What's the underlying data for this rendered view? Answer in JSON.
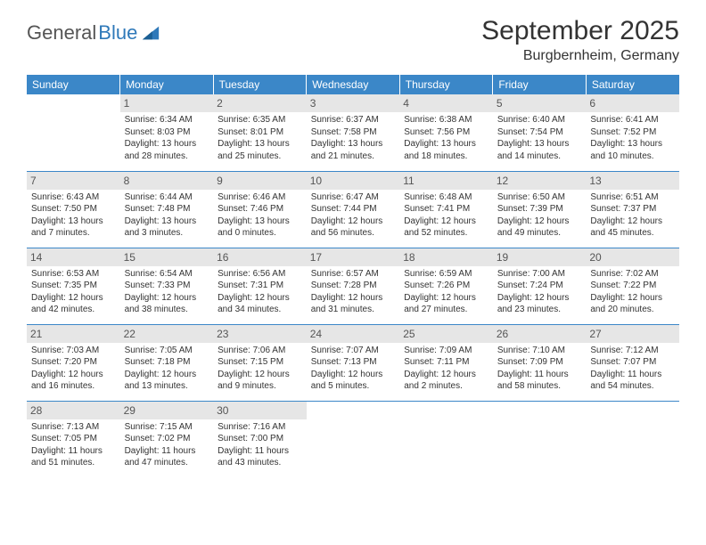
{
  "logo": {
    "text1": "General",
    "text2": "Blue"
  },
  "title": "September 2025",
  "subtitle": "Burgbernheim, Germany",
  "colors": {
    "header_bg": "#3b87c8",
    "header_text": "#ffffff",
    "daynum_bg": "#e6e6e6",
    "rule": "#3b87c8",
    "logo_blue": "#2f79b9",
    "body_text": "#333333"
  },
  "weekdays": [
    "Sunday",
    "Monday",
    "Tuesday",
    "Wednesday",
    "Thursday",
    "Friday",
    "Saturday"
  ],
  "weeks": [
    [
      {
        "day": "",
        "sunrise": "",
        "sunset": "",
        "daylight1": "",
        "daylight2": ""
      },
      {
        "day": "1",
        "sunrise": "Sunrise: 6:34 AM",
        "sunset": "Sunset: 8:03 PM",
        "daylight1": "Daylight: 13 hours",
        "daylight2": "and 28 minutes."
      },
      {
        "day": "2",
        "sunrise": "Sunrise: 6:35 AM",
        "sunset": "Sunset: 8:01 PM",
        "daylight1": "Daylight: 13 hours",
        "daylight2": "and 25 minutes."
      },
      {
        "day": "3",
        "sunrise": "Sunrise: 6:37 AM",
        "sunset": "Sunset: 7:58 PM",
        "daylight1": "Daylight: 13 hours",
        "daylight2": "and 21 minutes."
      },
      {
        "day": "4",
        "sunrise": "Sunrise: 6:38 AM",
        "sunset": "Sunset: 7:56 PM",
        "daylight1": "Daylight: 13 hours",
        "daylight2": "and 18 minutes."
      },
      {
        "day": "5",
        "sunrise": "Sunrise: 6:40 AM",
        "sunset": "Sunset: 7:54 PM",
        "daylight1": "Daylight: 13 hours",
        "daylight2": "and 14 minutes."
      },
      {
        "day": "6",
        "sunrise": "Sunrise: 6:41 AM",
        "sunset": "Sunset: 7:52 PM",
        "daylight1": "Daylight: 13 hours",
        "daylight2": "and 10 minutes."
      }
    ],
    [
      {
        "day": "7",
        "sunrise": "Sunrise: 6:43 AM",
        "sunset": "Sunset: 7:50 PM",
        "daylight1": "Daylight: 13 hours",
        "daylight2": "and 7 minutes."
      },
      {
        "day": "8",
        "sunrise": "Sunrise: 6:44 AM",
        "sunset": "Sunset: 7:48 PM",
        "daylight1": "Daylight: 13 hours",
        "daylight2": "and 3 minutes."
      },
      {
        "day": "9",
        "sunrise": "Sunrise: 6:46 AM",
        "sunset": "Sunset: 7:46 PM",
        "daylight1": "Daylight: 13 hours",
        "daylight2": "and 0 minutes."
      },
      {
        "day": "10",
        "sunrise": "Sunrise: 6:47 AM",
        "sunset": "Sunset: 7:44 PM",
        "daylight1": "Daylight: 12 hours",
        "daylight2": "and 56 minutes."
      },
      {
        "day": "11",
        "sunrise": "Sunrise: 6:48 AM",
        "sunset": "Sunset: 7:41 PM",
        "daylight1": "Daylight: 12 hours",
        "daylight2": "and 52 minutes."
      },
      {
        "day": "12",
        "sunrise": "Sunrise: 6:50 AM",
        "sunset": "Sunset: 7:39 PM",
        "daylight1": "Daylight: 12 hours",
        "daylight2": "and 49 minutes."
      },
      {
        "day": "13",
        "sunrise": "Sunrise: 6:51 AM",
        "sunset": "Sunset: 7:37 PM",
        "daylight1": "Daylight: 12 hours",
        "daylight2": "and 45 minutes."
      }
    ],
    [
      {
        "day": "14",
        "sunrise": "Sunrise: 6:53 AM",
        "sunset": "Sunset: 7:35 PM",
        "daylight1": "Daylight: 12 hours",
        "daylight2": "and 42 minutes."
      },
      {
        "day": "15",
        "sunrise": "Sunrise: 6:54 AM",
        "sunset": "Sunset: 7:33 PM",
        "daylight1": "Daylight: 12 hours",
        "daylight2": "and 38 minutes."
      },
      {
        "day": "16",
        "sunrise": "Sunrise: 6:56 AM",
        "sunset": "Sunset: 7:31 PM",
        "daylight1": "Daylight: 12 hours",
        "daylight2": "and 34 minutes."
      },
      {
        "day": "17",
        "sunrise": "Sunrise: 6:57 AM",
        "sunset": "Sunset: 7:28 PM",
        "daylight1": "Daylight: 12 hours",
        "daylight2": "and 31 minutes."
      },
      {
        "day": "18",
        "sunrise": "Sunrise: 6:59 AM",
        "sunset": "Sunset: 7:26 PM",
        "daylight1": "Daylight: 12 hours",
        "daylight2": "and 27 minutes."
      },
      {
        "day": "19",
        "sunrise": "Sunrise: 7:00 AM",
        "sunset": "Sunset: 7:24 PM",
        "daylight1": "Daylight: 12 hours",
        "daylight2": "and 23 minutes."
      },
      {
        "day": "20",
        "sunrise": "Sunrise: 7:02 AM",
        "sunset": "Sunset: 7:22 PM",
        "daylight1": "Daylight: 12 hours",
        "daylight2": "and 20 minutes."
      }
    ],
    [
      {
        "day": "21",
        "sunrise": "Sunrise: 7:03 AM",
        "sunset": "Sunset: 7:20 PM",
        "daylight1": "Daylight: 12 hours",
        "daylight2": "and 16 minutes."
      },
      {
        "day": "22",
        "sunrise": "Sunrise: 7:05 AM",
        "sunset": "Sunset: 7:18 PM",
        "daylight1": "Daylight: 12 hours",
        "daylight2": "and 13 minutes."
      },
      {
        "day": "23",
        "sunrise": "Sunrise: 7:06 AM",
        "sunset": "Sunset: 7:15 PM",
        "daylight1": "Daylight: 12 hours",
        "daylight2": "and 9 minutes."
      },
      {
        "day": "24",
        "sunrise": "Sunrise: 7:07 AM",
        "sunset": "Sunset: 7:13 PM",
        "daylight1": "Daylight: 12 hours",
        "daylight2": "and 5 minutes."
      },
      {
        "day": "25",
        "sunrise": "Sunrise: 7:09 AM",
        "sunset": "Sunset: 7:11 PM",
        "daylight1": "Daylight: 12 hours",
        "daylight2": "and 2 minutes."
      },
      {
        "day": "26",
        "sunrise": "Sunrise: 7:10 AM",
        "sunset": "Sunset: 7:09 PM",
        "daylight1": "Daylight: 11 hours",
        "daylight2": "and 58 minutes."
      },
      {
        "day": "27",
        "sunrise": "Sunrise: 7:12 AM",
        "sunset": "Sunset: 7:07 PM",
        "daylight1": "Daylight: 11 hours",
        "daylight2": "and 54 minutes."
      }
    ],
    [
      {
        "day": "28",
        "sunrise": "Sunrise: 7:13 AM",
        "sunset": "Sunset: 7:05 PM",
        "daylight1": "Daylight: 11 hours",
        "daylight2": "and 51 minutes."
      },
      {
        "day": "29",
        "sunrise": "Sunrise: 7:15 AM",
        "sunset": "Sunset: 7:02 PM",
        "daylight1": "Daylight: 11 hours",
        "daylight2": "and 47 minutes."
      },
      {
        "day": "30",
        "sunrise": "Sunrise: 7:16 AM",
        "sunset": "Sunset: 7:00 PM",
        "daylight1": "Daylight: 11 hours",
        "daylight2": "and 43 minutes."
      },
      {
        "day": "",
        "sunrise": "",
        "sunset": "",
        "daylight1": "",
        "daylight2": ""
      },
      {
        "day": "",
        "sunrise": "",
        "sunset": "",
        "daylight1": "",
        "daylight2": ""
      },
      {
        "day": "",
        "sunrise": "",
        "sunset": "",
        "daylight1": "",
        "daylight2": ""
      },
      {
        "day": "",
        "sunrise": "",
        "sunset": "",
        "daylight1": "",
        "daylight2": ""
      }
    ]
  ]
}
